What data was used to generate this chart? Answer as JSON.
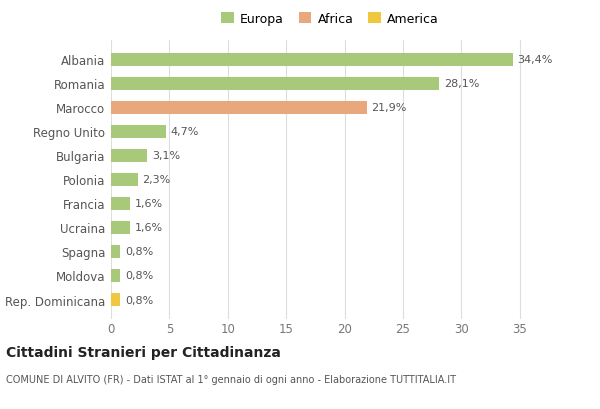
{
  "categories": [
    "Albania",
    "Romania",
    "Marocco",
    "Regno Unito",
    "Bulgaria",
    "Polonia",
    "Francia",
    "Ucraina",
    "Spagna",
    "Moldova",
    "Rep. Dominicana"
  ],
  "values": [
    34.4,
    28.1,
    21.9,
    4.7,
    3.1,
    2.3,
    1.6,
    1.6,
    0.8,
    0.8,
    0.8
  ],
  "labels": [
    "34,4%",
    "28,1%",
    "21,9%",
    "4,7%",
    "3,1%",
    "2,3%",
    "1,6%",
    "1,6%",
    "0,8%",
    "0,8%",
    "0,8%"
  ],
  "bar_colors": [
    "#a8c87a",
    "#a8c87a",
    "#e8a87c",
    "#a8c87a",
    "#a8c87a",
    "#a8c87a",
    "#a8c87a",
    "#a8c87a",
    "#a8c87a",
    "#a8c87a",
    "#f0c840"
  ],
  "legend_labels": [
    "Europa",
    "Africa",
    "America"
  ],
  "legend_colors": [
    "#a8c87a",
    "#e8a87c",
    "#f0c840"
  ],
  "title": "Cittadini Stranieri per Cittadinanza",
  "subtitle": "COMUNE DI ALVITO (FR) - Dati ISTAT al 1° gennaio di ogni anno - Elaborazione TUTTITALIA.IT",
  "xlim": [
    0,
    37
  ],
  "xticks": [
    0,
    5,
    10,
    15,
    20,
    25,
    30,
    35
  ],
  "bg_color": "#ffffff",
  "grid_color": "#dddddd",
  "bar_height": 0.55
}
